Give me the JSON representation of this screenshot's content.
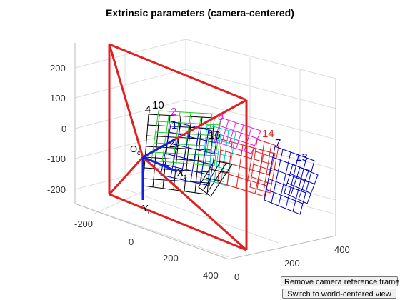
{
  "window": {
    "title": "Extrinsic parameters (camera-centered)"
  },
  "axes": {
    "z_ticks": [
      "200",
      "100",
      "0",
      "-100",
      "-200"
    ],
    "x_ticks": [
      "-200",
      "0",
      "200",
      "400"
    ],
    "y_ticks": [
      "0",
      "200",
      "400"
    ],
    "camera_labels": {
      "origin": "O",
      "origin_sub": "c",
      "x_axis": "X",
      "x_sub": "c",
      "y_axis": "Y",
      "y_sub": "c",
      "z_axis": "Z",
      "z_sub": "c"
    },
    "grid": true
  },
  "boards": [
    {
      "label": "10",
      "color": "#000000"
    },
    {
      "label": "4",
      "color": "#000000"
    },
    {
      "label": "2",
      "color": "#e020e0"
    },
    {
      "label": "1",
      "color": "#0000cc"
    },
    {
      "label": "8",
      "color": "#e020e0"
    },
    {
      "label": "16",
      "color": "#000000"
    },
    {
      "label": "14",
      "color": "#e02020"
    },
    {
      "label": "7",
      "color": "#0000cc"
    },
    {
      "label": "13",
      "color": "#0000cc"
    }
  ],
  "colors": {
    "frustum": "#e02020",
    "grid": "#dddddd",
    "box": "#cccccc"
  },
  "buttons": {
    "remove_frame": "Remove camera reference frame",
    "switch_view": "Switch to world-centered view"
  }
}
